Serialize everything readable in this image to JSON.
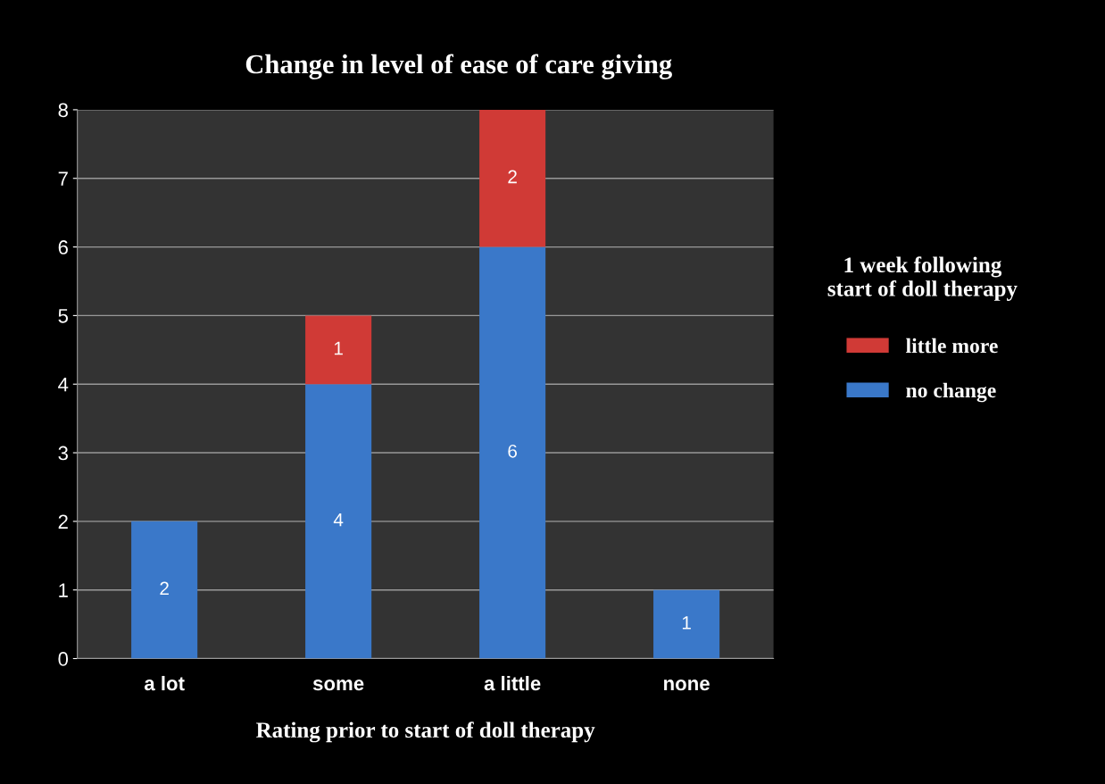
{
  "chart_data": {
    "type": "bar",
    "stacked": true,
    "title": "Change in level of ease of care giving",
    "xlabel": "Rating prior to start of doll therapy",
    "legend_title": "1 week following\nstart of doll therapy",
    "categories": [
      "a lot",
      "some",
      "a little",
      "none"
    ],
    "series": [
      {
        "name": "no change",
        "color": "#3a78c9",
        "values": [
          2,
          4,
          6,
          1
        ],
        "value_labels": [
          "2",
          "4",
          "6",
          "1"
        ]
      },
      {
        "name": "little more",
        "color": "#d03a36",
        "values": [
          null,
          1,
          2,
          null
        ],
        "value_labels": [
          null,
          "1",
          "2",
          null
        ]
      }
    ],
    "ylim": [
      0,
      8
    ],
    "yticks": [
      0,
      1,
      2,
      3,
      4,
      5,
      6,
      7,
      8
    ],
    "grid": "y",
    "legend": "right"
  }
}
